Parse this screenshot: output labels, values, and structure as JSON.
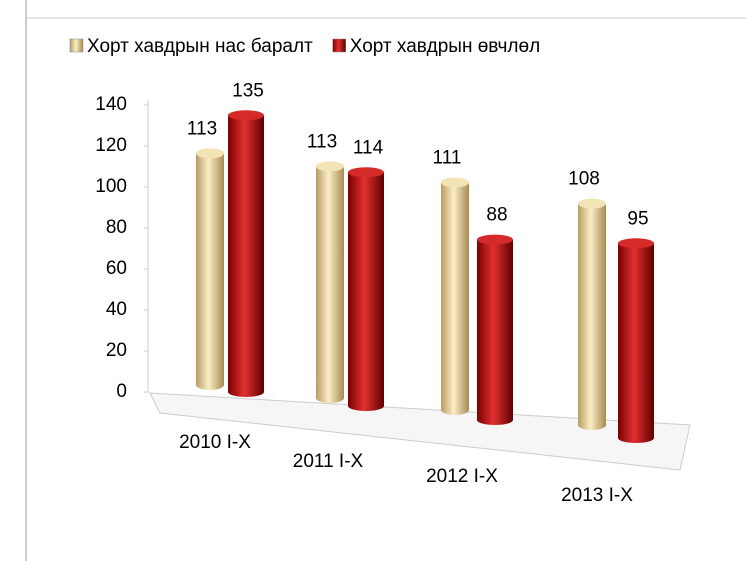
{
  "chart_data": {
    "type": "bar",
    "categories": [
      "2010 I-X",
      "2011 I-X",
      "2012 I-X",
      "2013 I-X"
    ],
    "series": [
      {
        "name": "Хорт хавдрын нас баралт",
        "color": "#e8d7a4",
        "values": [
          113,
          113,
          111,
          108
        ]
      },
      {
        "name": "Хорт хавдрын өвчлөл",
        "color": "#c81e1e",
        "values": [
          135,
          114,
          88,
          95
        ]
      }
    ],
    "ylim": [
      0,
      140
    ],
    "yticks": [
      0,
      20,
      40,
      60,
      80,
      100,
      120,
      140
    ],
    "legend": "top"
  }
}
